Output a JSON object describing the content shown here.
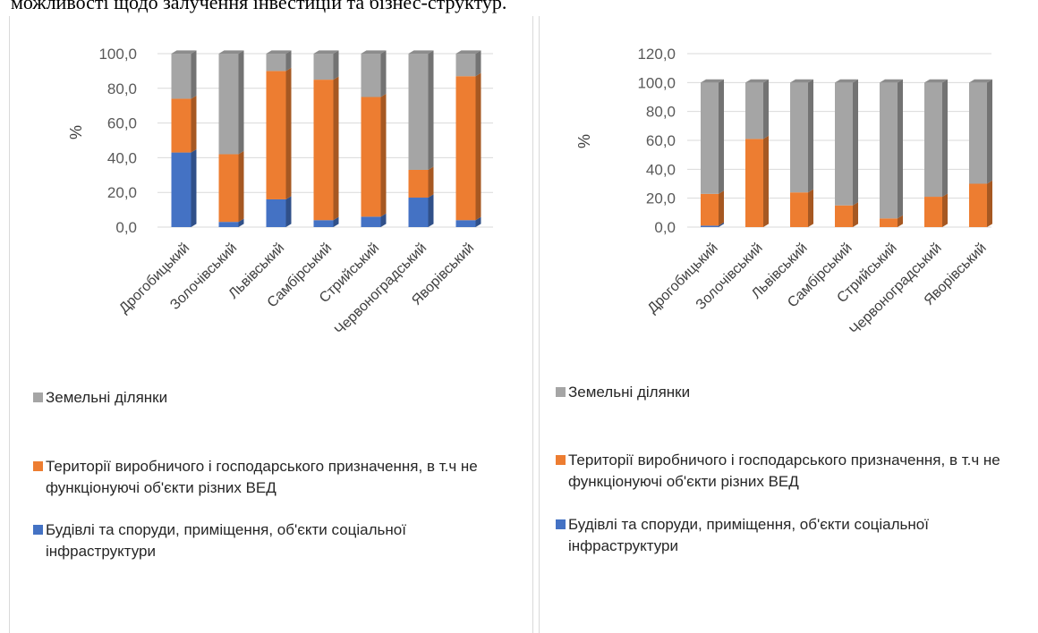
{
  "caption": "можливості щодо залучення інвестицій та бізнес-структур.",
  "legend": [
    {
      "label": "Земельні ділянки",
      "color": "#a5a5a5"
    },
    {
      "label": "Території  виробничого  і господарського призначення, в т.ч не функціонуючі об'єкти різних ВЕД",
      "color": "#ed7d31"
    },
    {
      "label": "Будівлі та споруди, приміщення, об'єкти соціальної інфраструктури",
      "color": "#4472c4"
    }
  ],
  "chart_data": [
    {
      "type": "bar",
      "stacked": true,
      "ylabel": "%",
      "ylim": [
        0,
        100
      ],
      "yticks": [
        "0,0",
        "20,0",
        "40,0",
        "60,0",
        "80,0",
        "100,0"
      ],
      "categories": [
        "Дрогобицький",
        "Золочівський",
        "Львівський",
        "Самбірський",
        "Стрийський",
        "Червоноградський",
        "Яворівський"
      ],
      "series": [
        {
          "name": "Будівлі та споруди, приміщення, об'єкти соціальної інфраструктури",
          "color": "#4472c4",
          "values": [
            43,
            3,
            16,
            4,
            6,
            17,
            4
          ]
        },
        {
          "name": "Території  виробничого  і господарського призначення, в т.ч не функціонуючі об'єкти різних ВЕД",
          "color": "#ed7d31",
          "values": [
            31,
            39,
            74,
            81,
            69,
            16,
            83
          ]
        },
        {
          "name": "Земельні ділянки",
          "color": "#a5a5a5",
          "values": [
            26,
            58,
            10,
            15,
            25,
            67,
            13
          ]
        }
      ]
    },
    {
      "type": "bar",
      "stacked": true,
      "ylabel": "%",
      "ylim": [
        0,
        120
      ],
      "yticks": [
        "0,0",
        "20,0",
        "40,0",
        "60,0",
        "80,0",
        "100,0",
        "120,0"
      ],
      "categories": [
        "Дрогобицький",
        "Золочівський",
        "Львівський",
        "Самбірський",
        "Стрийський",
        "Червоноградський",
        "Яворівський"
      ],
      "series": [
        {
          "name": "Будівлі та споруди, приміщення, об'єкти соціальної інфраструктури",
          "color": "#4472c4",
          "values": [
            1,
            0,
            0,
            0,
            0,
            0,
            0
          ]
        },
        {
          "name": "Території  виробничого  і господарського призначення, в т.ч не функціонуючі об'єкти різних ВЕД",
          "color": "#ed7d31",
          "values": [
            22,
            61,
            24,
            15,
            6,
            21,
            30
          ]
        },
        {
          "name": "Земельні ділянки",
          "color": "#a5a5a5",
          "values": [
            77,
            39,
            76,
            85,
            94,
            79,
            70
          ]
        }
      ]
    }
  ]
}
